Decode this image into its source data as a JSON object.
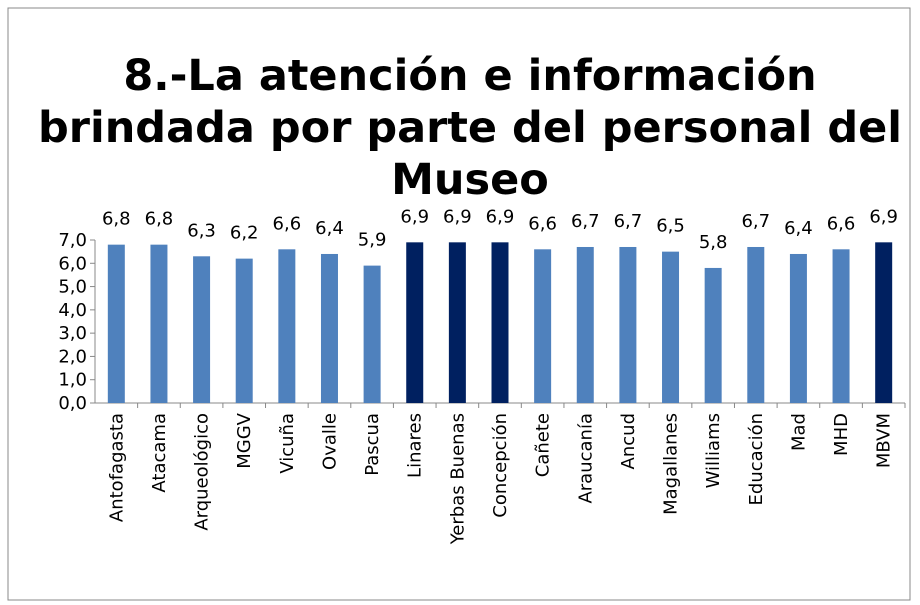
{
  "chart_data": {
    "type": "bar",
    "title": [
      "8.-La atención e información",
      "brindada por parte del personal del",
      "Museo"
    ],
    "categories": [
      "Antofagasta",
      "Atacama",
      "Arqueológico",
      "MGGV",
      "Vicuña",
      "Ovalle",
      "Pascua",
      "Linares",
      "Yerbas Buenas",
      "Concepción",
      "Cañete",
      "Araucanía",
      "Ancud",
      "Magallanes",
      "Williams",
      "Educación",
      "Mad",
      "MHD",
      "MBVM"
    ],
    "values": [
      6.8,
      6.8,
      6.3,
      6.2,
      6.6,
      6.4,
      5.9,
      6.9,
      6.9,
      6.9,
      6.6,
      6.7,
      6.7,
      6.5,
      5.8,
      6.7,
      6.4,
      6.6,
      6.9
    ],
    "value_labels": [
      "6,8",
      "6,8",
      "6,3",
      "6,2",
      "6,6",
      "6,4",
      "5,9",
      "6,9",
      "6,9",
      "6,9",
      "6,6",
      "6,7",
      "6,7",
      "6,5",
      "5,8",
      "6,7",
      "6,4",
      "6,6",
      "6,9"
    ],
    "colors": [
      "#4f81bd",
      "#4f81bd",
      "#4f81bd",
      "#4f81bd",
      "#4f81bd",
      "#4f81bd",
      "#4f81bd",
      "#002060",
      "#002060",
      "#002060",
      "#4f81bd",
      "#4f81bd",
      "#4f81bd",
      "#4f81bd",
      "#4f81bd",
      "#4f81bd",
      "#4f81bd",
      "#4f81bd",
      "#002060"
    ],
    "ylim": [
      0,
      7
    ],
    "yticks": [
      {
        "value": 0,
        "label": "0,0"
      },
      {
        "value": 1,
        "label": "1,0"
      },
      {
        "value": 2,
        "label": "2,0"
      },
      {
        "value": 3,
        "label": "3,0"
      },
      {
        "value": 4,
        "label": "4,0"
      },
      {
        "value": 5,
        "label": "5,0"
      },
      {
        "value": 6,
        "label": "6,0"
      },
      {
        "value": 7,
        "label": "7,0"
      }
    ]
  }
}
